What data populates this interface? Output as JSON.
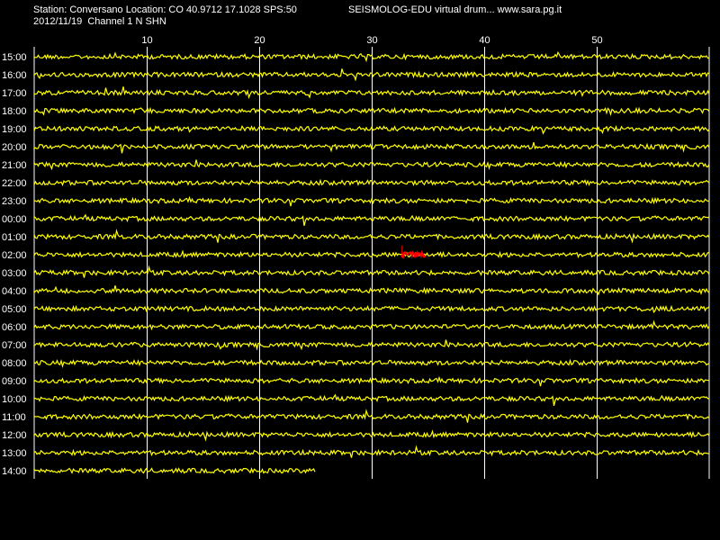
{
  "header": {
    "station_line": "Station: Conversano Location: CO 40.9712 17.1028 SPS:50",
    "date_line": "2012/11/19  Channel 1 N SHN",
    "web_line": "SEISMOLOG-EDU virtual drum... www.sara.pg.it"
  },
  "colors": {
    "background": "#000000",
    "trace": "#ffff00",
    "event": "#ff0000",
    "grid": "#ffffff"
  },
  "chart_data": {
    "type": "line",
    "title": "",
    "xlabel": "",
    "ylabel": "",
    "xlim": [
      0,
      60
    ],
    "x_ticks": [
      10,
      20,
      30,
      40,
      50
    ],
    "x_tick_labels": [
      "10",
      "20",
      "30",
      "40",
      "50"
    ],
    "grid": true,
    "rows": [
      "15:00",
      "16:00",
      "17:00",
      "18:00",
      "19:00",
      "20:00",
      "21:00",
      "22:00",
      "23:00",
      "00:00",
      "01:00",
      "02:00",
      "03:00",
      "04:00",
      "05:00",
      "06:00",
      "07:00",
      "08:00",
      "09:00",
      "10:00",
      "11:00",
      "12:00",
      "13:00",
      "14:00"
    ],
    "row_end_minute": [
      60,
      60,
      60,
      60,
      60,
      60,
      60,
      60,
      60,
      60,
      60,
      60,
      60,
      60,
      60,
      60,
      60,
      60,
      60,
      60,
      60,
      60,
      60,
      25
    ],
    "event": {
      "row": "02:00",
      "start_minute": 32.7,
      "end_minute": 34.8
    }
  }
}
